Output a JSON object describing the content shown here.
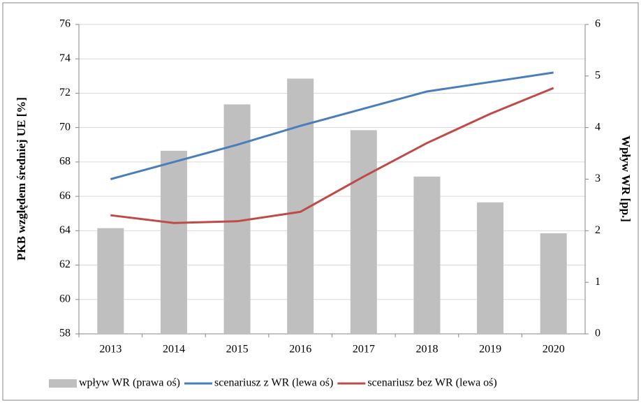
{
  "chart_data": {
    "type": "bar_line",
    "ylabel": "PKB względem średniej UE [%]",
    "y2label": "Wpływ WR [pp.]",
    "categories": [
      "2013",
      "2014",
      "2015",
      "2016",
      "2017",
      "2018",
      "2019",
      "2020"
    ],
    "series": [
      {
        "name": "wpływ WR (prawa oś)",
        "type": "bar",
        "axis": "y2",
        "color": "#bfbfbf",
        "values": [
          2.05,
          3.55,
          4.45,
          4.95,
          3.95,
          3.05,
          2.55,
          1.95
        ]
      },
      {
        "name": "scenariusz z WR (lewa oś)",
        "type": "line",
        "axis": "y",
        "color": "#4a7ebb",
        "values": [
          67.0,
          68.0,
          69.0,
          70.1,
          71.1,
          72.1,
          72.65,
          73.2
        ]
      },
      {
        "name": "scenariusz bez WR (lewa oś)",
        "type": "line",
        "axis": "y",
        "color": "#be4b48",
        "values": [
          64.9,
          64.45,
          64.55,
          65.1,
          67.15,
          69.1,
          70.8,
          72.3
        ]
      }
    ],
    "ylim": [
      58,
      76
    ],
    "yticks": [
      58,
      60,
      62,
      64,
      66,
      68,
      70,
      72,
      74,
      76
    ],
    "y2lim": [
      0,
      6
    ],
    "y2ticks": [
      0,
      1,
      2,
      3,
      4,
      5,
      6
    ],
    "grid": true,
    "legend": "bottom"
  }
}
